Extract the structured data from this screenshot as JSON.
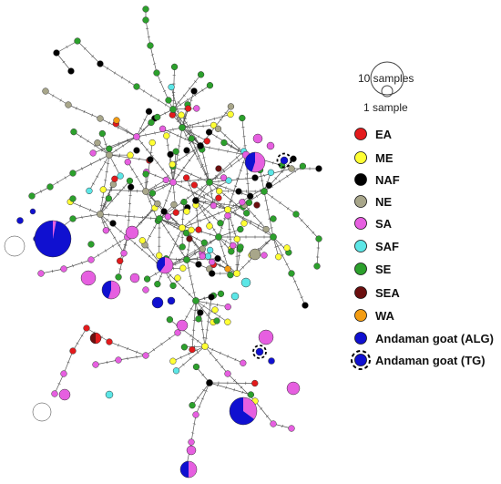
{
  "scale_legend": {
    "large_label": "10 samples",
    "small_label": "1 sample"
  },
  "legend": [
    {
      "label": "EA",
      "color": "#e31a1c",
      "style": "solid"
    },
    {
      "label": "ME",
      "color": "#ffff33",
      "style": "solid"
    },
    {
      "label": "NAF",
      "color": "#000000",
      "style": "solid"
    },
    {
      "label": "NE",
      "color": "#a8a68a",
      "style": "solid"
    },
    {
      "label": "SA",
      "color": "#e65fe0",
      "style": "solid"
    },
    {
      "label": "SAF",
      "color": "#5ce6e6",
      "style": "solid"
    },
    {
      "label": "SE",
      "color": "#2ca02c",
      "style": "solid"
    },
    {
      "label": "SEA",
      "color": "#6b0f0f",
      "style": "solid"
    },
    {
      "label": "WA",
      "color": "#f39c12",
      "style": "solid"
    },
    {
      "label": "Andaman goat (ALG)",
      "color": "#1010d0",
      "style": "solid"
    },
    {
      "label": "Andaman goat (TG)",
      "color": "#1010d0",
      "style": "dashed"
    }
  ]
}
